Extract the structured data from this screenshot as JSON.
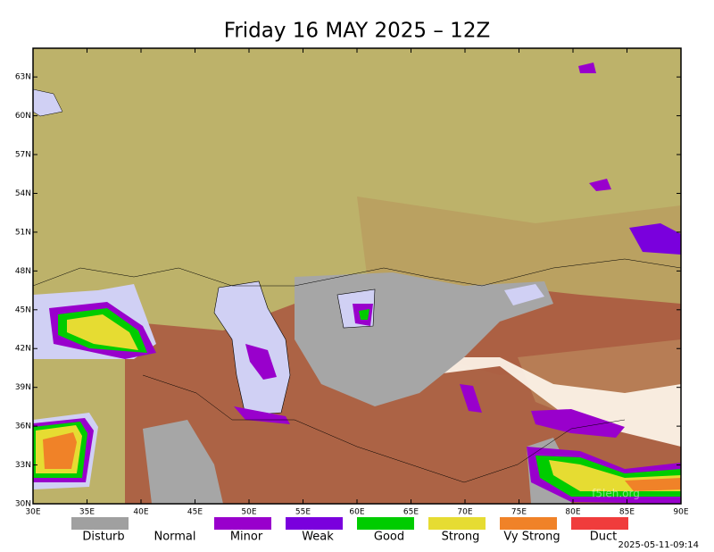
{
  "title": "Friday 16 MAY 2025 – 12Z",
  "map": {
    "lon_ticks": [
      "30E",
      "35E",
      "40E",
      "45E",
      "50E",
      "55E",
      "60E",
      "65E",
      "70E",
      "75E",
      "80E",
      "85E",
      "90E"
    ],
    "lat_ticks": [
      "30N",
      "33N",
      "36N",
      "39N",
      "42N",
      "45N",
      "48N",
      "51N",
      "54N",
      "57N",
      "60N",
      "63N"
    ]
  },
  "legend": [
    {
      "label": "Disturb",
      "color": "#a0a0a0"
    },
    {
      "label": "Normal",
      "color": "#ffffff"
    },
    {
      "label": "Minor",
      "color": "#9900cc"
    },
    {
      "label": "Weak",
      "color": "#7a00dd"
    },
    {
      "label": "Good",
      "color": "#00cc00"
    },
    {
      "label": "Strong",
      "color": "#e6dc32"
    },
    {
      "label": "Vy Strong",
      "color": "#f08228"
    },
    {
      "label": "Duct",
      "color": "#f03c3c"
    }
  ],
  "timestamp": "2025-05-11-09:14",
  "watermark": "f5leh.org"
}
